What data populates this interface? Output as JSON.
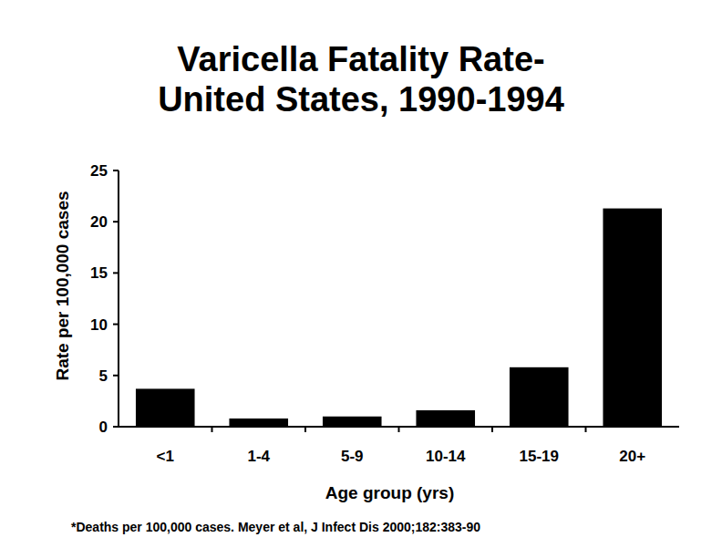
{
  "chart_data": {
    "type": "bar",
    "title": "Varicella Fatality Rate-\nUnited States, 1990-1994",
    "x_label": "Age group (yrs)",
    "y_label": "Rate per 100,000 cases",
    "categories": [
      "<1",
      "1-4",
      "5-9",
      "10-14",
      "15-19",
      "20+"
    ],
    "values": [
      3.7,
      0.8,
      1.0,
      1.6,
      5.8,
      21.3
    ],
    "color": "#000000",
    "ylim": [
      0,
      25
    ],
    "yticks": [
      0,
      5,
      10,
      15,
      20,
      25
    ],
    "grid": false,
    "annotations": [
      "*Deaths per 100,000 cases.  Meyer et al, J Infect Dis 2000;182:383-90"
    ]
  }
}
